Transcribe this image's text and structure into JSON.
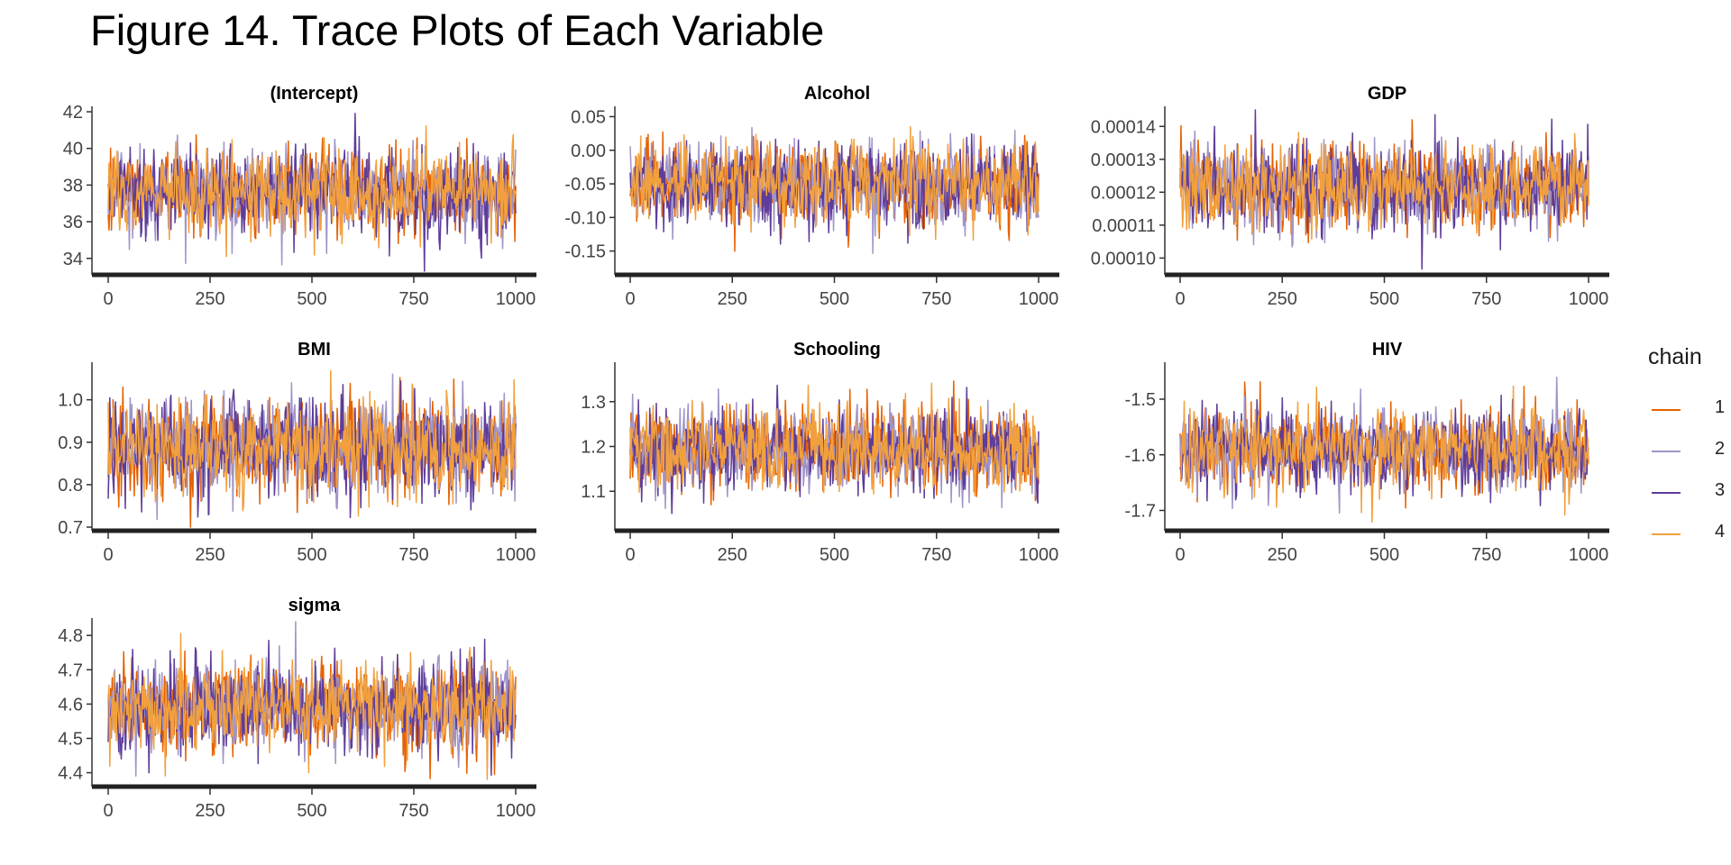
{
  "title": "Figure 14. Trace Plots of Each Variable",
  "legend": {
    "title": "chain",
    "items": [
      {
        "label": "1",
        "color": "#e66101"
      },
      {
        "label": "2",
        "color": "#9f94c9"
      },
      {
        "label": "3",
        "color": "#5e3c99"
      },
      {
        "label": "4",
        "color": "#f2a03d"
      }
    ]
  },
  "chart_data": [
    {
      "type": "line",
      "title": "(Intercept)",
      "center": 37.6,
      "sd": 1.15,
      "xlim": [
        0,
        1000
      ],
      "ylim": [
        33.3,
        42.1
      ],
      "xticks": [
        0,
        250,
        500,
        750,
        1000
      ],
      "yticks": [
        34,
        36,
        38,
        40,
        42
      ],
      "ytick_labels": [
        "34",
        "36",
        "38",
        "40",
        "42"
      ]
    },
    {
      "type": "line",
      "title": "Alcohol",
      "center": -0.05,
      "sd": 0.031,
      "xlim": [
        0,
        1000
      ],
      "ylim": [
        -0.18,
        0.06
      ],
      "xticks": [
        0,
        250,
        500,
        750,
        1000
      ],
      "yticks": [
        -0.15,
        -0.1,
        -0.05,
        0.0,
        0.05
      ],
      "ytick_labels": [
        "-0.15",
        "-0.10",
        "-0.05",
        "0.00",
        "0.05"
      ]
    },
    {
      "type": "line",
      "title": "GDP",
      "center": 0.000122,
      "sd": 6.5e-06,
      "xlim": [
        0,
        1000
      ],
      "ylim": [
        9.6e-05,
        0.000145
      ],
      "xticks": [
        0,
        250,
        500,
        750,
        1000
      ],
      "yticks": [
        0.0001,
        0.00011,
        0.00012,
        0.00013,
        0.00014
      ],
      "ytick_labels": [
        "0.00010",
        "0.00011",
        "0.00012",
        "0.00013",
        "0.00014"
      ]
    },
    {
      "type": "line",
      "title": "BMI",
      "center": 0.892,
      "sd": 0.057,
      "xlim": [
        0,
        1000
      ],
      "ylim": [
        0.7,
        1.08
      ],
      "xticks": [
        0,
        250,
        500,
        750,
        1000
      ],
      "yticks": [
        0.7,
        0.8,
        0.9,
        1.0
      ],
      "ytick_labels": [
        "0.7",
        "0.8",
        "0.9",
        "1.0"
      ]
    },
    {
      "type": "line",
      "title": "Schooling",
      "center": 1.195,
      "sd": 0.048,
      "xlim": [
        0,
        1000
      ],
      "ylim": [
        1.02,
        1.38
      ],
      "xticks": [
        0,
        250,
        500,
        750,
        1000
      ],
      "yticks": [
        1.1,
        1.2,
        1.3
      ],
      "ytick_labels": [
        "1.1",
        "1.2",
        "1.3"
      ]
    },
    {
      "type": "line",
      "title": "HIV",
      "center": -1.59,
      "sd": 0.038,
      "xlim": [
        0,
        1000
      ],
      "ylim": [
        -1.73,
        -1.44
      ],
      "xticks": [
        0,
        250,
        500,
        750,
        1000
      ],
      "yticks": [
        -1.7,
        -1.6,
        -1.5
      ],
      "ytick_labels": [
        "-1.7",
        "-1.6",
        "-1.5"
      ]
    },
    {
      "type": "line",
      "title": "sigma",
      "center": 4.59,
      "sd": 0.065,
      "xlim": [
        0,
        1000
      ],
      "ylim": [
        4.37,
        4.84
      ],
      "xticks": [
        0,
        250,
        500,
        750,
        1000
      ],
      "yticks": [
        4.4,
        4.5,
        4.6,
        4.7,
        4.8
      ],
      "ytick_labels": [
        "4.4",
        "4.5",
        "4.6",
        "4.7",
        "4.8"
      ]
    }
  ]
}
